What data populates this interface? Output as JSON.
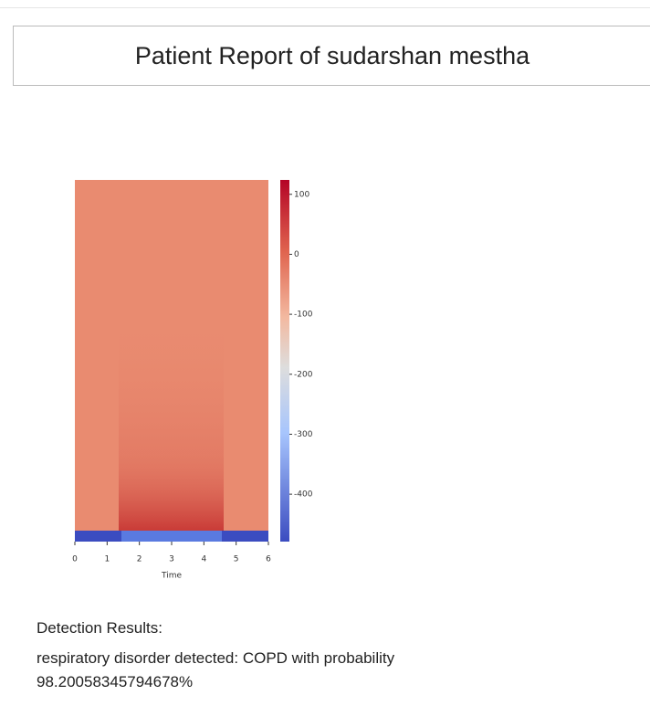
{
  "header": {
    "title": "Patient Report of sudarshan mestha"
  },
  "chart_data": {
    "type": "heatmap",
    "xlabel": "Time",
    "xlim": [
      0,
      6
    ],
    "xticks": [
      0,
      1,
      2,
      3,
      4,
      5,
      6
    ],
    "clim": [
      -479,
      124
    ],
    "colorbar_ticks": [
      100,
      0,
      -100,
      -200,
      -300,
      -400
    ]
  },
  "results": {
    "heading": "Detection Results:",
    "text": "respiratory disorder detected: COPD with probability 98.20058345794678%"
  }
}
